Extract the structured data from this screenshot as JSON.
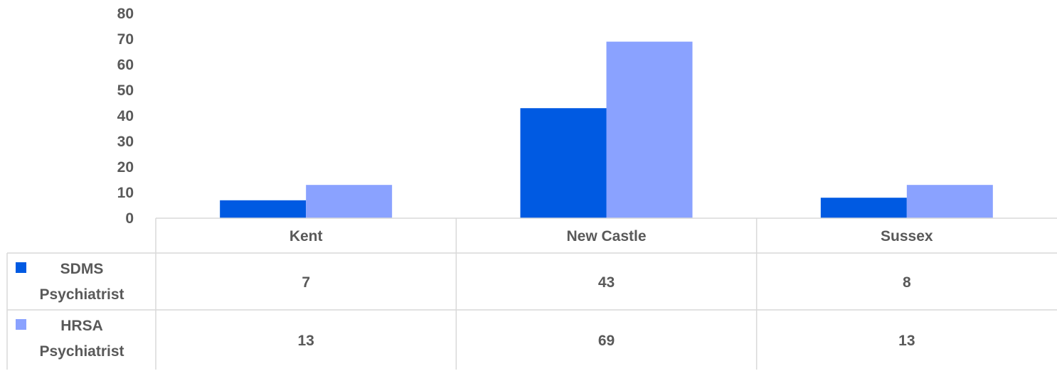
{
  "chart_data": {
    "type": "bar",
    "categories": [
      "Kent",
      "New Castle",
      "Sussex"
    ],
    "series": [
      {
        "name_lines": [
          "SDMS",
          "Psychiatrist"
        ],
        "values": [
          7,
          43,
          8
        ],
        "color": "#005ae2"
      },
      {
        "name_lines": [
          "HRSA",
          "Psychiatrist"
        ],
        "values": [
          13,
          69,
          13
        ],
        "color": "#8aa2ff"
      }
    ],
    "ylim": [
      0,
      80
    ],
    "yticks": [
      0,
      10,
      20,
      30,
      40,
      50,
      60,
      70,
      80
    ],
    "data_table": true,
    "gridlines": false
  }
}
